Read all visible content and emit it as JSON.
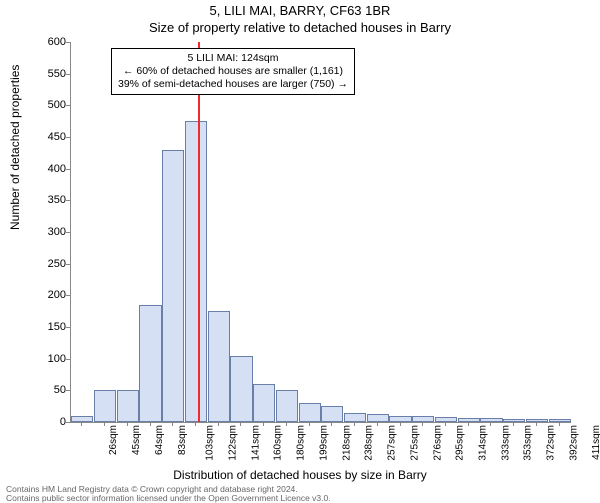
{
  "supertitle": "5, LILI MAI, BARRY, CF63 1BR",
  "title": "Size of property relative to detached houses in Barry",
  "y_axis_label": "Number of detached properties",
  "x_axis_label": "Distribution of detached houses by size in Barry",
  "footer_line1": "Contains HM Land Registry data © Crown copyright and database right 2024.",
  "footer_line2": "Contains public sector information licensed under the Open Government Licence v3.0.",
  "chart": {
    "type": "histogram",
    "ylim": [
      0,
      600
    ],
    "ytick_step": 50,
    "background_color": "#ffffff",
    "bar_fill": "#d6e0f5",
    "bar_stroke": "#6a7fa8",
    "bar_stroke_width": 1,
    "reference_line_color": "#ef2b2d",
    "reference_line_x_value": 124,
    "x_categories": [
      "26sqm",
      "45sqm",
      "64sqm",
      "83sqm",
      "103sqm",
      "122sqm",
      "141sqm",
      "160sqm",
      "180sqm",
      "199sqm",
      "218sqm",
      "238sqm",
      "257sqm",
      "275sqm",
      "276sqm",
      "295sqm",
      "314sqm",
      "333sqm",
      "353sqm",
      "372sqm",
      "392sqm",
      "411sqm"
    ],
    "bar_values": [
      10,
      50,
      50,
      185,
      430,
      475,
      175,
      105,
      60,
      50,
      30,
      25,
      15,
      12,
      10,
      10,
      8,
      6,
      6,
      5,
      5,
      4
    ],
    "annotation": {
      "line1": "5 LILI MAI: 124sqm",
      "line2": "← 60% of detached houses are smaller (1,161)",
      "line3": "39% of semi-detached houses are larger (750) →"
    }
  }
}
